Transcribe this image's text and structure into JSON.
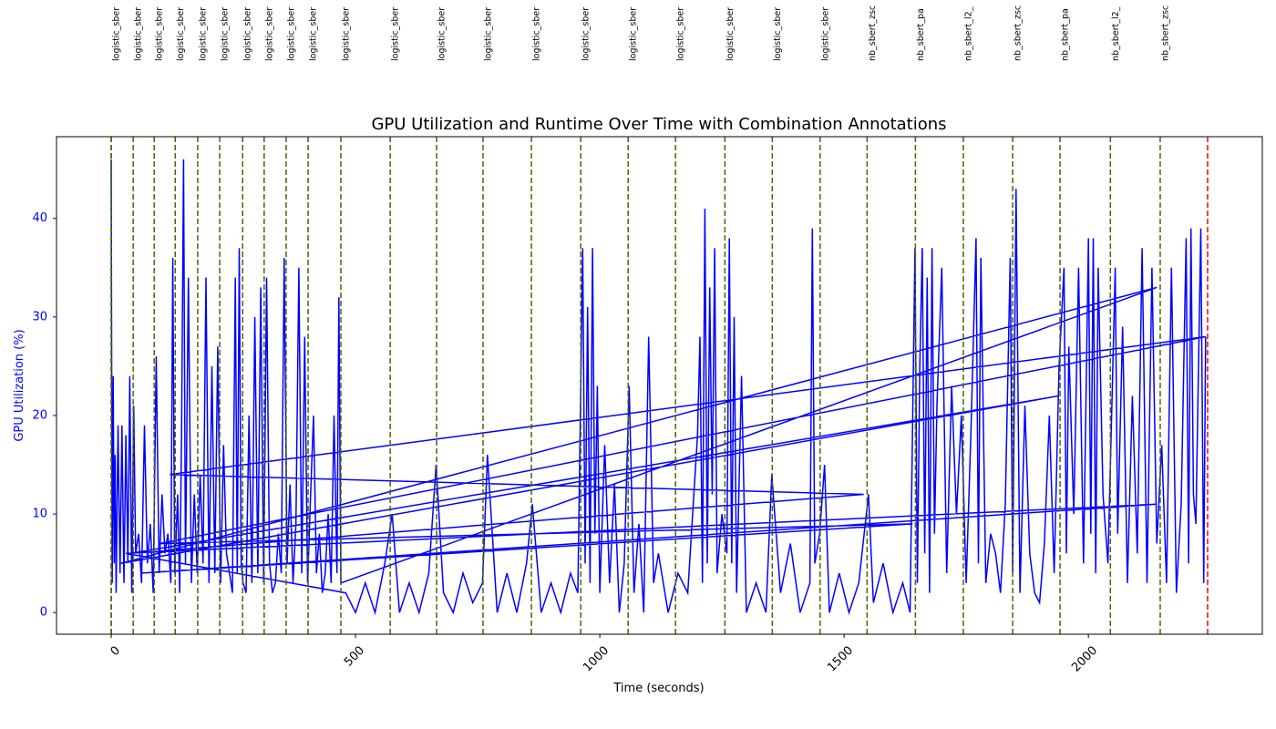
{
  "chart_data": {
    "type": "line",
    "title": "GPU Utilization and Runtime Over Time with Combination Annotations",
    "xlabel": "Time (seconds)",
    "ylabel": "GPU Utilization (%)",
    "xlim": [
      -112,
      2356
    ],
    "ylim": [
      -2.2,
      48.3
    ],
    "xticks": [
      0,
      500,
      1000,
      1500,
      2000
    ],
    "yticks": [
      0,
      10,
      20,
      30,
      40
    ],
    "axis_color": "blue",
    "start_line": {
      "x": 0,
      "color": "green"
    },
    "end_line": {
      "x": 2244,
      "color": "red"
    },
    "annotation_color": "#4d6600",
    "annotations": [
      {
        "x": 0,
        "label": "logistic_sber"
      },
      {
        "x": 45,
        "label": "logistic_sber"
      },
      {
        "x": 88,
        "label": "logistic_sber"
      },
      {
        "x": 131,
        "label": "logistic_sber"
      },
      {
        "x": 177,
        "label": "logistic_sber"
      },
      {
        "x": 222,
        "label": "logistic_sber"
      },
      {
        "x": 269,
        "label": "logistic_sber"
      },
      {
        "x": 313,
        "label": "logistic_sber"
      },
      {
        "x": 358,
        "label": "logistic_sber"
      },
      {
        "x": 403,
        "label": "logistic_sber"
      },
      {
        "x": 470,
        "label": "logistic_sber"
      },
      {
        "x": 571,
        "label": "logistic_sber"
      },
      {
        "x": 666,
        "label": "logistic_sber"
      },
      {
        "x": 761,
        "label": "logistic_sber"
      },
      {
        "x": 860,
        "label": "logistic_sber"
      },
      {
        "x": 961,
        "label": "logistic_sber"
      },
      {
        "x": 1058,
        "label": "logistic_sber"
      },
      {
        "x": 1155,
        "label": "logistic_sber"
      },
      {
        "x": 1256,
        "label": "logistic_sber"
      },
      {
        "x": 1353,
        "label": "logistic_sber"
      },
      {
        "x": 1451,
        "label": "logistic_sber"
      },
      {
        "x": 1547,
        "label": "nb_sbert_zsc"
      },
      {
        "x": 1646,
        "label": "nb_sbert_pa"
      },
      {
        "x": 1744,
        "label": "nb_sbert_l2_"
      },
      {
        "x": 1845,
        "label": "nb_sbert_zsc"
      },
      {
        "x": 1942,
        "label": "nb_sbert_pa"
      },
      {
        "x": 2045,
        "label": "nb_sbert_l2_"
      },
      {
        "x": 2147,
        "label": "nb_sbert_zsc"
      }
    ],
    "x": [
      0,
      2,
      4,
      6,
      8,
      10,
      14,
      18,
      22,
      26,
      30,
      34,
      38,
      42,
      46,
      50,
      56,
      62,
      68,
      74,
      80,
      86,
      92,
      98,
      104,
      110,
      116,
      122,
      126,
      130,
      136,
      140,
      144,
      148,
      152,
      158,
      164,
      170,
      176,
      182,
      188,
      194,
      200,
      206,
      212,
      218,
      224,
      230,
      236,
      242,
      248,
      254,
      258,
      262,
      266,
      270,
      276,
      282,
      288,
      294,
      300,
      306,
      312,
      318,
      324,
      330,
      336,
      342,
      348,
      354,
      360,
      366,
      372,
      378,
      384,
      390,
      396,
      402,
      408,
      414,
      420,
      426,
      432,
      438,
      444,
      450,
      456,
      462,
      466,
      470,
      2140,
      20,
      1940,
      40,
      1540,
      120,
      2240,
      100,
      1640,
      60,
      2140,
      30,
      480,
      500,
      520,
      540,
      560,
      575,
      590,
      610,
      630,
      650,
      665,
      680,
      700,
      720,
      740,
      760,
      770,
      790,
      810,
      830,
      850,
      862,
      880,
      900,
      920,
      940,
      955,
      965,
      970,
      975,
      980,
      985,
      990,
      995,
      1000,
      1010,
      1020,
      1030,
      1040,
      1050,
      1060,
      1070,
      1080,
      1090,
      1100,
      1110,
      1120,
      1140,
      1160,
      1180,
      1200,
      1205,
      1210,
      1215,
      1220,
      1225,
      1230,
      1235,
      1240,
      1250,
      1260,
      1265,
      1270,
      1275,
      1280,
      1290,
      1300,
      1320,
      1340,
      1352,
      1370,
      1390,
      1410,
      1430,
      1435,
      1440,
      1450,
      1460,
      1470,
      1490,
      1510,
      1530,
      1550,
      1560,
      1580,
      1600,
      1620,
      1635,
      1645,
      1650,
      1655,
      1660,
      1665,
      1670,
      1675,
      1680,
      1685,
      1690,
      1700,
      1710,
      1720,
      1730,
      1740,
      1750,
      1760,
      1770,
      1775,
      1780,
      1790,
      1800,
      1810,
      1820,
      1830,
      1840,
      1845,
      1852,
      1860,
      1870,
      1880,
      1890,
      1900,
      1910,
      1920,
      1930,
      1940,
      1950,
      1955,
      1960,
      1970,
      1980,
      1990,
      2000,
      2005,
      2010,
      2015,
      2020,
      2030,
      2040,
      2050,
      2055,
      2060,
      2070,
      2080,
      2090,
      2100,
      2110,
      2120,
      2130,
      2140,
      2150,
      2160,
      2170,
      2180,
      2190,
      2200,
      2205,
      2210,
      2215,
      2220,
      2230,
      2236,
      2240
    ],
    "series": [
      {
        "color": "blue",
        "values": [
          46,
          3,
          24,
          5,
          16,
          2,
          19,
          4,
          19,
          3,
          18,
          5,
          24,
          2,
          21,
          6,
          8,
          3,
          19,
          5,
          9,
          2,
          26,
          4,
          12,
          6,
          8,
          3,
          36,
          4,
          12,
          2,
          18,
          46,
          5,
          34,
          3,
          12,
          4,
          14,
          5,
          34,
          3,
          25,
          4,
          27,
          3,
          17,
          6,
          4,
          2,
          34,
          4,
          37,
          5,
          3,
          2,
          20,
          3,
          30,
          4,
          33,
          3,
          34,
          5,
          2,
          3,
          8,
          4,
          36,
          5,
          13,
          3,
          9,
          35,
          4,
          28,
          3,
          12,
          20,
          4,
          8,
          2,
          4,
          10,
          3,
          20,
          4,
          32,
          3,
          33,
          5,
          22,
          6,
          12,
          14,
          28,
          7,
          9,
          4,
          11,
          6,
          2,
          0,
          3,
          0,
          5,
          10,
          0,
          3,
          0,
          4,
          15,
          2,
          0,
          4,
          1,
          3,
          16,
          0,
          4,
          0,
          5,
          11,
          0,
          3,
          0,
          4,
          2,
          37,
          5,
          31,
          3,
          37,
          8,
          23,
          2,
          17,
          3,
          13,
          0,
          5,
          23,
          2,
          9,
          0,
          28,
          3,
          6,
          0,
          4,
          2,
          18,
          28,
          3,
          41,
          5,
          33,
          12,
          37,
          4,
          10,
          6,
          38,
          5,
          30,
          2,
          24,
          0,
          3,
          0,
          14,
          2,
          7,
          0,
          3,
          39,
          5,
          8,
          15,
          0,
          4,
          0,
          3,
          12,
          1,
          5,
          0,
          3,
          0,
          37,
          3,
          25,
          37,
          6,
          34,
          2,
          37,
          8,
          21,
          35,
          4,
          23,
          10,
          20,
          3,
          19,
          38,
          5,
          36,
          3,
          8,
          6,
          2,
          11,
          36,
          4,
          43,
          2,
          21,
          6,
          2,
          1,
          7,
          20,
          4,
          25,
          35,
          6,
          27,
          10,
          35,
          5,
          38,
          8,
          38,
          4,
          35,
          12,
          5,
          25,
          35,
          8,
          29,
          3,
          22,
          6,
          37,
          3,
          35,
          7,
          17,
          3,
          35,
          2,
          11,
          38,
          5,
          39,
          12,
          9,
          39,
          3,
          28
        ]
      }
    ]
  }
}
